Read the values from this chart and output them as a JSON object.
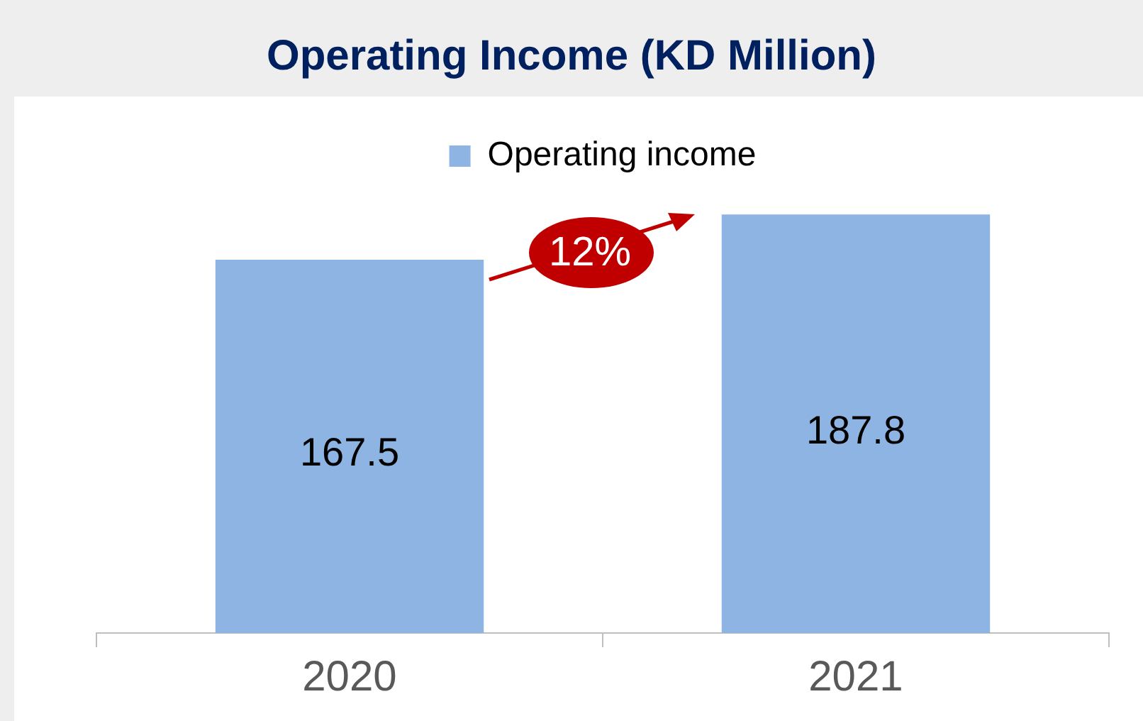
{
  "chart_data": {
    "type": "bar",
    "title": "Operating Income (KD Million)",
    "categories": [
      "2020",
      "2021"
    ],
    "series": [
      {
        "name": "Operating income",
        "color": "#8eb4e3",
        "values": [
          167.5,
          187.8
        ]
      }
    ],
    "data_labels": true,
    "legend": "top",
    "grid": false,
    "tick_labels": "x",
    "annotations": [
      "12%"
    ]
  }
}
